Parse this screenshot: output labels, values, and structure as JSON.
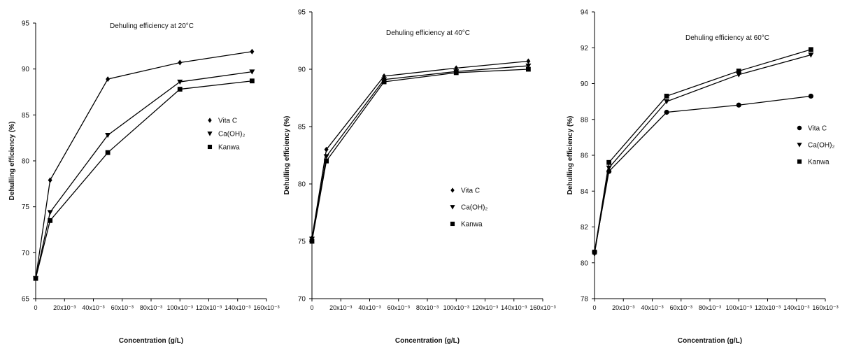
{
  "chart_data": [
    {
      "type": "line",
      "title": "Dehuling efficiency at 20°C",
      "xlabel": "Concentration (g/L)",
      "ylabel": "Dehulling efficiency (%)",
      "xlim": [
        0,
        0.16
      ],
      "ylim": [
        65,
        95
      ],
      "xticks": [
        0,
        0.02,
        0.04,
        0.06,
        0.08,
        0.1,
        0.12,
        0.14,
        0.16
      ],
      "xtick_labels": [
        "0",
        "20x10⁻³",
        "40x10⁻³",
        "60x10⁻³",
        "80x10⁻³",
        "100x10⁻³",
        "120x10⁻³",
        "140x10⁻³",
        "160x10⁻³"
      ],
      "yticks": [
        65,
        70,
        75,
        80,
        85,
        90,
        95
      ],
      "ytick_labels": [
        "65",
        "70",
        "75",
        "80",
        "85",
        "90",
        "95"
      ],
      "grid": false,
      "legend_position": "right",
      "x": [
        0,
        0.01,
        0.05,
        0.1,
        0.15
      ],
      "series": [
        {
          "name": "Vita C",
          "marker": "diamond",
          "values": [
            67.2,
            77.9,
            88.9,
            90.7,
            91.9
          ]
        },
        {
          "name": "Ca(OH)₂",
          "marker": "triangle-down",
          "values": [
            67.2,
            74.4,
            82.8,
            88.6,
            89.7
          ]
        },
        {
          "name": "Kanwa",
          "marker": "square",
          "values": [
            67.2,
            73.5,
            80.9,
            87.8,
            88.7
          ]
        }
      ]
    },
    {
      "type": "line",
      "title": "Dehuling efficiency at 40°C",
      "xlabel": "Concentration (g/L)",
      "ylabel": "Dehulling efficiency (%)",
      "xlim": [
        0,
        0.16
      ],
      "ylim": [
        70,
        95
      ],
      "xticks": [
        0,
        0.02,
        0.04,
        0.06,
        0.08,
        0.1,
        0.12,
        0.14,
        0.16
      ],
      "xtick_labels": [
        "0",
        "20x10⁻³",
        "40x10⁻³",
        "60x10⁻³",
        "80x10⁻³",
        "100x10⁻³",
        "120x10⁻³",
        "140x10⁻³",
        "160x10⁻³"
      ],
      "yticks": [
        70,
        75,
        80,
        85,
        90,
        95
      ],
      "ytick_labels": [
        "70",
        "75",
        "80",
        "85",
        "90",
        "95"
      ],
      "grid": false,
      "legend_position": "center-right",
      "x": [
        0,
        0.01,
        0.05,
        0.1,
        0.15
      ],
      "series": [
        {
          "name": "Vita C",
          "marker": "diamond",
          "values": [
            75.3,
            83.0,
            89.4,
            90.1,
            90.7
          ]
        },
        {
          "name": "Ca(OH)₂",
          "marker": "triangle-down",
          "values": [
            75.2,
            82.4,
            89.1,
            89.8,
            90.3
          ]
        },
        {
          "name": "Kanwa",
          "marker": "square",
          "values": [
            75.0,
            82.0,
            88.9,
            89.7,
            90.0
          ]
        }
      ]
    },
    {
      "type": "line",
      "title": "Dehuling efficiency at 60°C",
      "xlabel": "Concentration (g/L)",
      "ylabel": "Dehulling efficiency (%)",
      "xlim": [
        0,
        0.16
      ],
      "ylim": [
        78,
        94
      ],
      "xticks": [
        0,
        0.02,
        0.04,
        0.06,
        0.08,
        0.1,
        0.12,
        0.14,
        0.16
      ],
      "xtick_labels": [
        "0",
        "20x10⁻³",
        "40x10⁻³",
        "60x10⁻³",
        "80x10⁻³",
        "100x10⁻³",
        "120x10⁻³",
        "140x10⁻³",
        "160x10⁻³"
      ],
      "yticks": [
        78,
        80,
        82,
        84,
        86,
        88,
        90,
        92,
        94
      ],
      "ytick_labels": [
        "78",
        "80",
        "82",
        "84",
        "86",
        "88",
        "90",
        "92",
        "94"
      ],
      "grid": false,
      "legend_position": "right",
      "x": [
        0,
        0.01,
        0.05,
        0.1,
        0.15
      ],
      "series": [
        {
          "name": "Vita C",
          "marker": "circle",
          "values": [
            80.6,
            85.1,
            88.4,
            88.8,
            89.3
          ]
        },
        {
          "name": "Ca(OH)₂",
          "marker": "triangle-down",
          "values": [
            80.5,
            85.3,
            89.0,
            90.5,
            91.6
          ]
        },
        {
          "name": "Kanwa",
          "marker": "square",
          "values": [
            80.6,
            85.6,
            89.3,
            90.7,
            91.9
          ]
        }
      ]
    }
  ]
}
